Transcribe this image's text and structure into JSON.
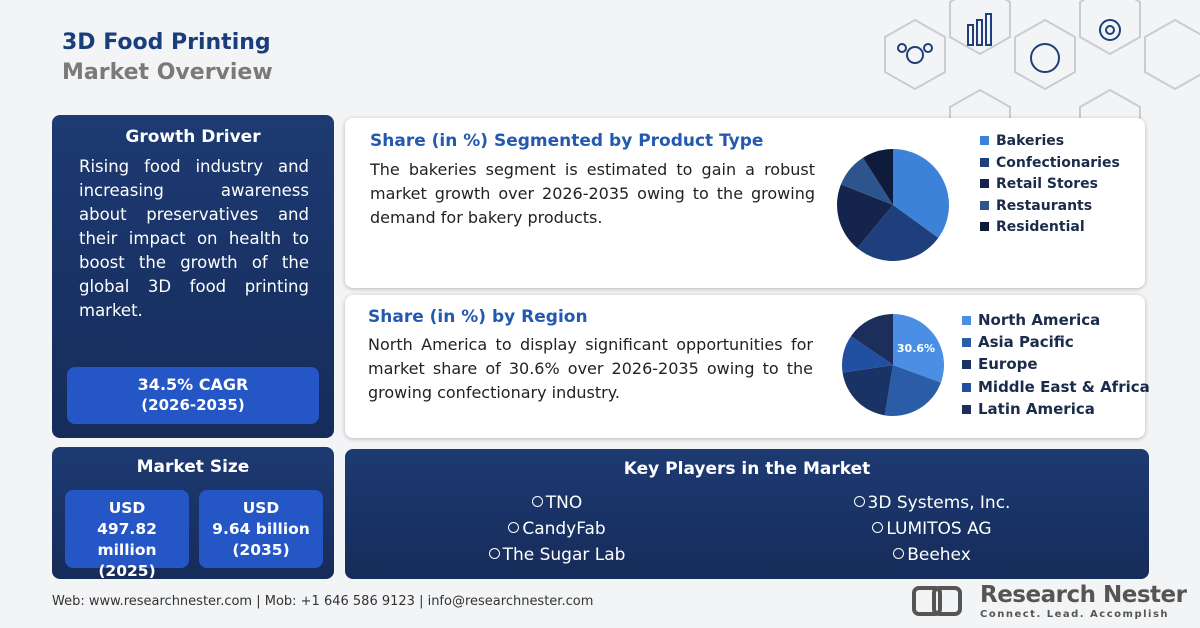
{
  "header": {
    "title": "3D Food Printing",
    "subtitle": "Market Overview"
  },
  "growth_driver": {
    "title": "Growth Driver",
    "text": "Rising food industry and increasing awareness about preservatives and their impact on health to boost the growth of the global 3D food printing market.",
    "cagr": "34.5% CAGR",
    "cagr_period": "(2026-2035)"
  },
  "market_size": {
    "title": "Market Size",
    "items": [
      {
        "currency": "USD",
        "amount": "497.82 million",
        "year": "(2025)"
      },
      {
        "currency": "USD",
        "amount": "9.64 billion",
        "year": "(2035)"
      }
    ]
  },
  "descriptions": [
    "The bakeries segment is estimated to gain a robust market growth over 2026-2035 owing to the growing demand for bakery products.",
    "North America to display significant opportunities for market share of 30.6% over 2026-2035 owing to the growing confectionary industry."
  ],
  "chart_data": [
    {
      "type": "pie",
      "title": "Share (in %) Segmented by Product Type",
      "categories": [
        "Bakeries",
        "Confectionaries",
        "Retail Stores",
        "Restaurants",
        "Residential"
      ],
      "values": [
        35,
        26,
        20,
        10,
        9
      ],
      "colors": [
        "#3b82d8",
        "#1f3f7c",
        "#15244d",
        "#2d548c",
        "#0e1b3a"
      ]
    },
    {
      "type": "pie",
      "title": "Share (in %) by Region",
      "categories": [
        "North America",
        "Asia Pacific",
        "Europe",
        "Middle East & Africa",
        "Latin America"
      ],
      "values": [
        30.6,
        22,
        20,
        12,
        15.4
      ],
      "value_labels": [
        "30.6%",
        null,
        null,
        null,
        null
      ],
      "colors": [
        "#4a8fe3",
        "#2b5ca8",
        "#1a3366",
        "#2150a3",
        "#1b2e5c"
      ]
    }
  ],
  "key_players": {
    "title": "Key Players in the Market",
    "players": [
      "TNO",
      "3D Systems, Inc.",
      "CandyFab",
      "LUMITOS AG",
      "The Sugar Lab",
      "Beehex"
    ]
  },
  "footer": {
    "contact": "Web: www.researchnester.com | Mob: +1 646 586 9123 | info@researchnester.com",
    "brand": "Research Nester",
    "tagline": "Connect. Lead. Accomplish"
  }
}
